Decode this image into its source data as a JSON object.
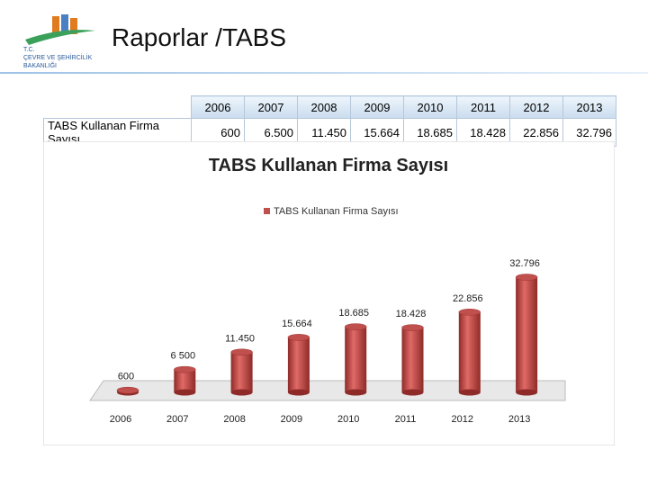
{
  "header": {
    "logo": [
      "T.C.",
      "ÇEVRE VE ŞEHİRCİLİK",
      "BAKANLIĞI"
    ],
    "title": "Raporlar /TABS"
  },
  "table": {
    "columns": [
      "2006",
      "2007",
      "2008",
      "2009",
      "2010",
      "2011",
      "2012",
      "2013"
    ],
    "row_label": "TABS Kullanan Firma Sayısı",
    "cells": [
      "600",
      "6.500",
      "11.450",
      "15.664",
      "18.685",
      "18.428",
      "22.856",
      "32.796"
    ]
  },
  "chart_data": {
    "type": "bar3d",
    "title": "TABS Kullanan Firma Sayısı",
    "categories": [
      "2006",
      "2007",
      "2008",
      "2009",
      "2010",
      "2011",
      "2012",
      "2013"
    ],
    "series": [
      {
        "name": "TABS Kullanan Firma Sayısı",
        "color": "#c0504d",
        "values": [
          600,
          6500,
          11450,
          15664,
          18685,
          18428,
          22856,
          32796
        ],
        "value_labels": [
          "600",
          "6 500",
          "11.450",
          "15.664",
          "18.685",
          "18.428",
          "22.856",
          "32.796"
        ]
      }
    ]
  }
}
